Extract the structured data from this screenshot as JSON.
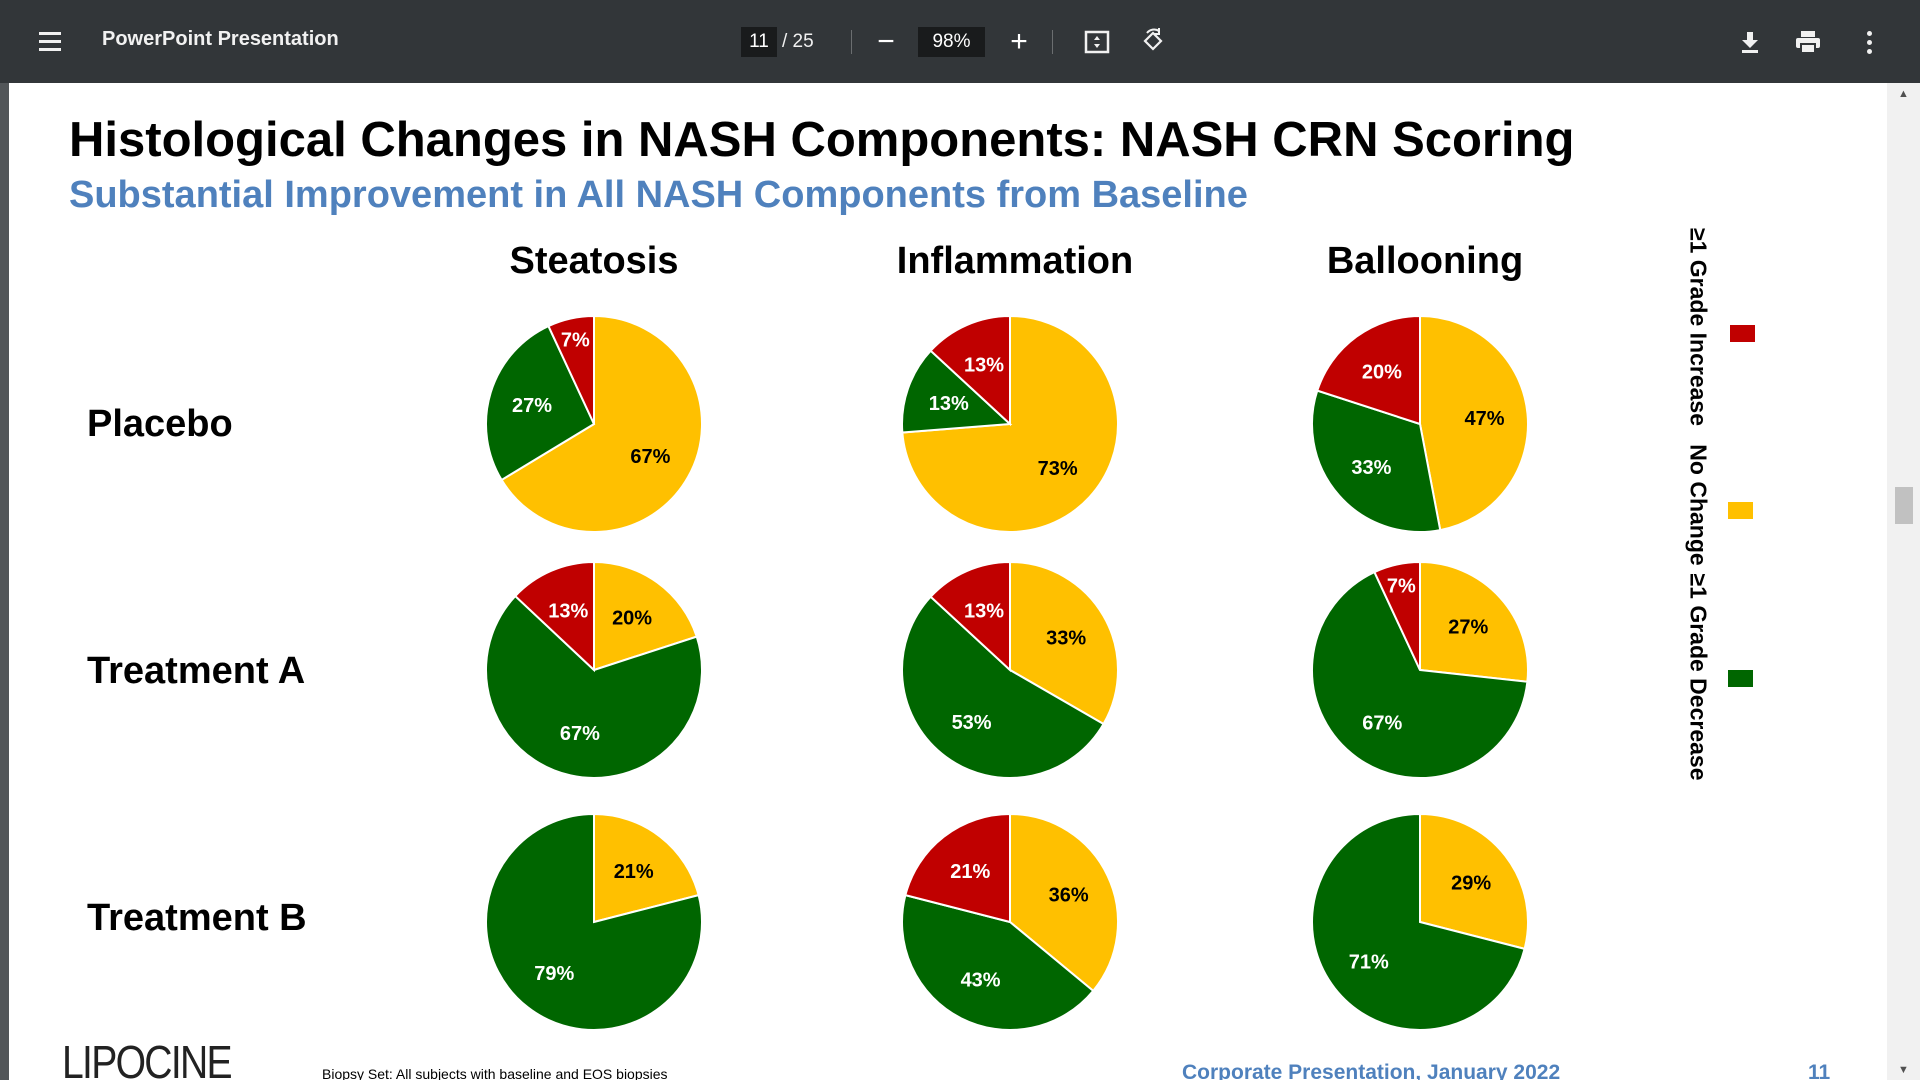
{
  "toolbar": {
    "title": "PowerPoint Presentation",
    "current_page": "11",
    "total_pages": "/ 25",
    "zoom": "98%",
    "icons": [
      "menu-icon",
      "zoom-out-icon",
      "zoom-in-icon",
      "fit-page-icon",
      "rotate-icon",
      "download-icon",
      "print-icon",
      "more-vert-icon"
    ]
  },
  "slide": {
    "title": "Histological Changes in NASH Components: NASH CRN Scoring",
    "subtitle": "Substantial Improvement in All NASH Components from Baseline",
    "footnote": "Biopsy Set: All subjects with baseline and EOS biopsies",
    "footer": "Corporate Presentation, January 2022",
    "page_number": "11",
    "logo": "LIPOCINE"
  },
  "chart_data": {
    "type": "pie",
    "columns": [
      "Steatosis",
      "Inflammation",
      "Ballooning"
    ],
    "rows": [
      "Placebo",
      "Treatment A",
      "Treatment B"
    ],
    "legend": [
      {
        "name": "≥1 Grade Increase",
        "color": "#c00000"
      },
      {
        "name": "No Change",
        "color": "#ffc000"
      },
      {
        "name": "≥1 Grade Decrease",
        "color": "#006600"
      }
    ],
    "legend_position": "right",
    "values": [
      [
        {
          "no_change": 67,
          "decrease": 27,
          "increase": 7
        },
        {
          "no_change": 73,
          "decrease": 13,
          "increase": 13
        },
        {
          "no_change": 47,
          "decrease": 33,
          "increase": 20
        }
      ],
      [
        {
          "no_change": 20,
          "decrease": 67,
          "increase": 13
        },
        {
          "no_change": 33,
          "decrease": 53,
          "increase": 13
        },
        {
          "no_change": 27,
          "decrease": 67,
          "increase": 7
        }
      ],
      [
        {
          "no_change": 21,
          "decrease": 79,
          "increase": 0
        },
        {
          "no_change": 36,
          "decrease": 43,
          "increase": 21
        },
        {
          "no_change": 29,
          "decrease": 71,
          "increase": 0
        }
      ]
    ]
  }
}
